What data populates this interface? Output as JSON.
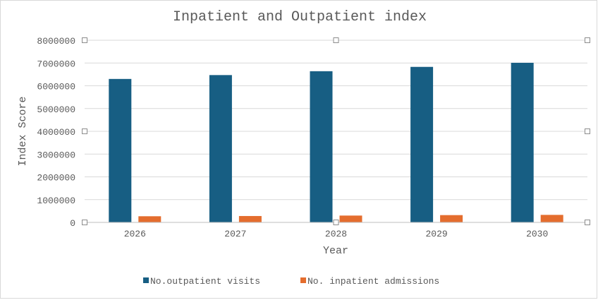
{
  "chart_data": {
    "type": "bar",
    "title": "Inpatient and Outpatient index",
    "xlabel": "Year",
    "ylabel": "Index Score",
    "categories": [
      "2026",
      "2027",
      "2028",
      "2029",
      "2030"
    ],
    "ylim": [
      0,
      8000000
    ],
    "yticks": [
      "0",
      "1000000",
      "2000000",
      "3000000",
      "4000000",
      "5000000",
      "6000000",
      "7000000",
      "8000000"
    ],
    "grid": true,
    "legend_position": "bottom",
    "series": [
      {
        "name": "No.outpatient visits",
        "color": "#175e83",
        "values": [
          6300000,
          6470000,
          6640000,
          6830000,
          7010000
        ]
      },
      {
        "name": "No. inpatient admissions",
        "color": "#e46d2e",
        "values": [
          270000,
          280000,
          300000,
          320000,
          330000
        ]
      }
    ]
  }
}
